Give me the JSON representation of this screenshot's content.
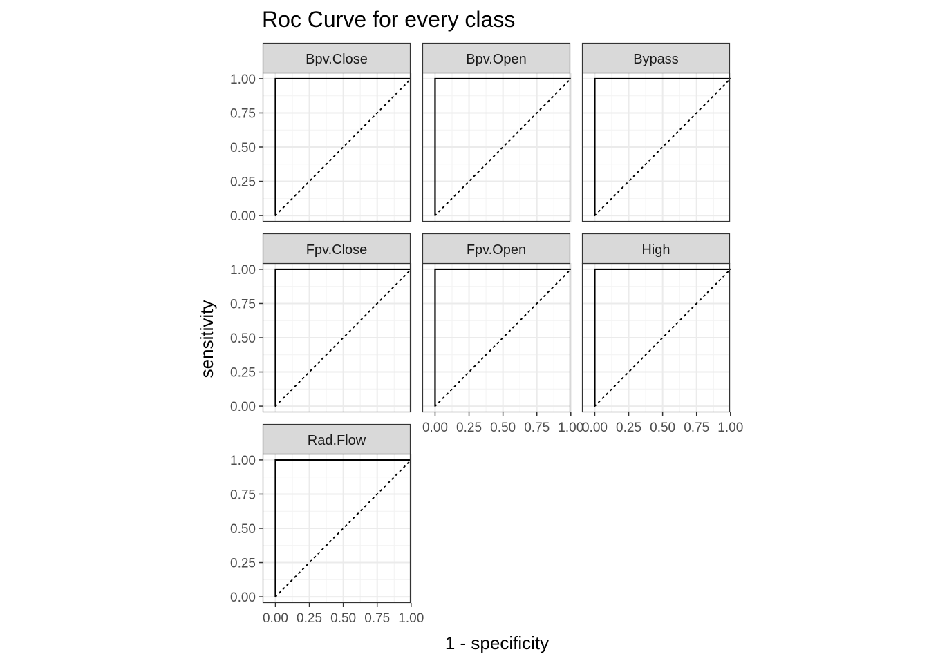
{
  "chart_data": {
    "type": "line",
    "title": "Roc Curve for every class",
    "xlabel": "1 - specificity",
    "ylabel": "sensitivity",
    "xlim": [
      0,
      1
    ],
    "ylim": [
      0,
      1
    ],
    "x_ticks": [
      "0.00",
      "0.25",
      "0.50",
      "0.75",
      "1.00"
    ],
    "y_ticks": [
      "0.00",
      "0.25",
      "0.50",
      "0.75",
      "1.00"
    ],
    "grid": true,
    "theme": "bw",
    "panels": [
      {
        "name": "Bpv.Close",
        "curve": [
          [
            0,
            0
          ],
          [
            0,
            1
          ],
          [
            1,
            1
          ]
        ],
        "reference": [
          [
            0,
            0
          ],
          [
            1,
            1
          ]
        ]
      },
      {
        "name": "Bpv.Open",
        "curve": [
          [
            0,
            0
          ],
          [
            0,
            1
          ],
          [
            1,
            1
          ]
        ],
        "reference": [
          [
            0,
            0
          ],
          [
            1,
            1
          ]
        ]
      },
      {
        "name": "Bypass",
        "curve": [
          [
            0,
            0
          ],
          [
            0,
            1
          ],
          [
            1,
            1
          ]
        ],
        "reference": [
          [
            0,
            0
          ],
          [
            1,
            1
          ]
        ]
      },
      {
        "name": "Fpv.Close",
        "curve": [
          [
            0,
            0
          ],
          [
            0,
            1
          ],
          [
            1,
            1
          ]
        ],
        "reference": [
          [
            0,
            0
          ],
          [
            1,
            1
          ]
        ]
      },
      {
        "name": "Fpv.Open",
        "curve": [
          [
            0,
            0
          ],
          [
            0,
            1
          ],
          [
            1,
            1
          ]
        ],
        "reference": [
          [
            0,
            0
          ],
          [
            1,
            1
          ]
        ]
      },
      {
        "name": "High",
        "curve": [
          [
            0,
            0
          ],
          [
            0,
            1
          ],
          [
            1,
            1
          ]
        ],
        "reference": [
          [
            0,
            0
          ],
          [
            1,
            1
          ]
        ]
      },
      {
        "name": "Rad.Flow",
        "curve": [
          [
            0,
            0
          ],
          [
            0,
            1
          ],
          [
            1,
            1
          ]
        ],
        "reference": [
          [
            0,
            0
          ],
          [
            1,
            1
          ]
        ]
      }
    ],
    "colors": {
      "curve": "#000000",
      "reference": "#000000",
      "strip_fill": "#d9d9d9",
      "strip_border": "#333333",
      "panel_border": "#333333",
      "grid_major": "#ebebeb",
      "grid_minor": "#f2f2f2",
      "tick_label": "#4d4d4d"
    }
  }
}
